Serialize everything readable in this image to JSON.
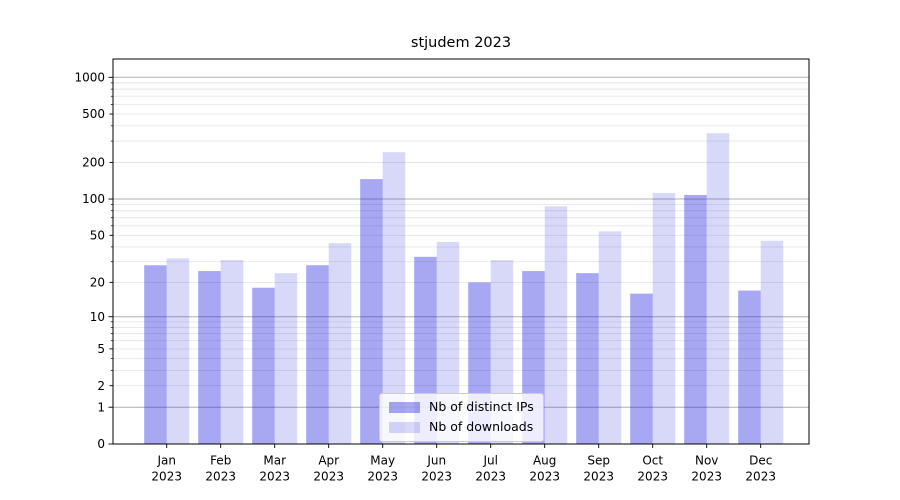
{
  "chart_data": {
    "type": "bar",
    "title": "stjudem 2023",
    "year_label": "2023",
    "months": [
      "Jan",
      "Feb",
      "Mar",
      "Apr",
      "May",
      "Jun",
      "Jul",
      "Aug",
      "Sep",
      "Oct",
      "Nov",
      "Dec"
    ],
    "series": [
      {
        "key": "distinct-ips",
        "name": "Nb of distinct IPs",
        "color": "#0f0fdc",
        "alpha": 0.37,
        "values": [
          28,
          25,
          18,
          28,
          146,
          33,
          20,
          25,
          24,
          16,
          108,
          17
        ]
      },
      {
        "key": "downloads",
        "name": "Nb of downloads",
        "color": "#0f0fdc",
        "alpha": 0.16,
        "values": [
          32,
          31,
          24,
          43,
          243,
          44,
          31,
          87,
          54,
          112,
          348,
          45
        ]
      }
    ],
    "yticks": [
      0,
      1,
      2,
      5,
      10,
      20,
      50,
      100,
      200,
      500,
      1000
    ],
    "scale": "log1p",
    "ylim": [
      0,
      1412
    ],
    "grid": true,
    "legend_position": "lower center",
    "colors": {
      "grid_major": "#b0b0b0",
      "grid_minor": "#e7e7e7",
      "spine": "#000000",
      "text": "#000000",
      "background": "#ffffff"
    }
  }
}
